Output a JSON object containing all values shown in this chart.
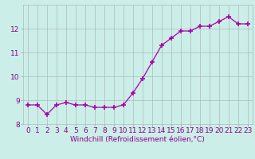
{
  "x": [
    0,
    1,
    2,
    3,
    4,
    5,
    6,
    7,
    8,
    9,
    10,
    11,
    12,
    13,
    14,
    15,
    16,
    17,
    18,
    19,
    20,
    21,
    22,
    23
  ],
  "y": [
    8.8,
    8.8,
    8.4,
    8.8,
    8.9,
    8.8,
    8.8,
    8.7,
    8.7,
    8.7,
    8.8,
    9.3,
    9.9,
    10.6,
    11.3,
    11.6,
    11.9,
    11.9,
    12.1,
    12.1,
    12.3,
    12.5,
    12.2,
    12.2
  ],
  "line_color": "#aa00aa",
  "marker": "+",
  "marker_color": "#aa00aa",
  "bg_color": "#cceee8",
  "grid_color": "#aabbbb",
  "xlabel": "Windchill (Refroidissement éolien,°C)",
  "ylim": [
    8.0,
    13.0
  ],
  "xlim_min": -0.5,
  "xlim_max": 23.5,
  "yticks": [
    8,
    9,
    10,
    11,
    12
  ],
  "xticks": [
    0,
    1,
    2,
    3,
    4,
    5,
    6,
    7,
    8,
    9,
    10,
    11,
    12,
    13,
    14,
    15,
    16,
    17,
    18,
    19,
    20,
    21,
    22,
    23
  ],
  "xlabel_fontsize": 6.5,
  "tick_fontsize": 6.5,
  "tick_color": "#880088",
  "linewidth": 0.9,
  "markersize": 4
}
